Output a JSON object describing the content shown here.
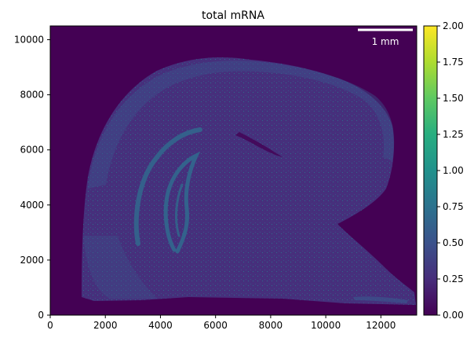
{
  "title": "total mRNA",
  "scale_bar_label": "1 mm",
  "x_ticks": [
    "0",
    "2000",
    "4000",
    "6000",
    "8000",
    "10000",
    "12000"
  ],
  "y_ticks": [
    "0",
    "2000",
    "4000",
    "6000",
    "8000",
    "10000"
  ],
  "colorbar_ticks": [
    "0.00",
    "0.25",
    "0.50",
    "0.75",
    "1.00",
    "1.25",
    "1.50",
    "1.75",
    "2.00"
  ],
  "colormap": "viridis",
  "colors": {
    "background": "#440154",
    "tissue": "#46327e",
    "tissue_bright": "#3b528b",
    "hippocampus": "#31688e",
    "scale_bar": "#ffffff"
  }
}
